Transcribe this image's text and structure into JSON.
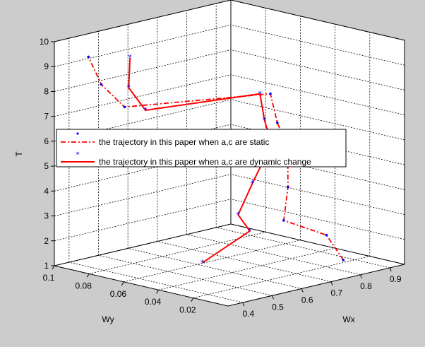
{
  "chart_data": {
    "type": "line",
    "title": "",
    "xlabel": "Wx",
    "ylabel": "Wy",
    "zlabel": "T",
    "xlim": [
      0.35,
      0.95
    ],
    "ylim": [
      0,
      0.1
    ],
    "zlim": [
      1,
      10
    ],
    "x_ticks": [
      "0.4",
      "0.5",
      "0.6",
      "0.7",
      "0.8",
      "0.9"
    ],
    "y_ticks": [
      "0.1",
      "0.08",
      "0.06",
      "0.04",
      "0.02"
    ],
    "z_ticks": [
      "1",
      "2",
      "3",
      "4",
      "5",
      "6",
      "7",
      "8",
      "9",
      "10"
    ],
    "grid": true,
    "legend_position": "center-left",
    "series": [
      {
        "name": "the trajectory in this paper when a,c are static",
        "color": "#ff0000",
        "marker_color": "#0000ff",
        "line_style": "dash-dot",
        "marker": "dot",
        "points": [
          {
            "x": 0.86,
            "y": 0.02,
            "t": 1.1
          },
          {
            "x": 0.85,
            "y": 0.028,
            "t": 2.0
          },
          {
            "x": 0.74,
            "y": 0.034,
            "t": 2.8
          },
          {
            "x": 0.79,
            "y": 0.04,
            "t": 3.9
          },
          {
            "x": 0.86,
            "y": 0.052,
            "t": 5.1
          },
          {
            "x": 0.86,
            "y": 0.058,
            "t": 6.0
          },
          {
            "x": 0.86,
            "y": 0.062,
            "t": 7.1
          },
          {
            "x": 0.5,
            "y": 0.085,
            "t": 7.2
          },
          {
            "x": 0.48,
            "y": 0.095,
            "t": 8.0
          },
          {
            "x": 0.46,
            "y": 0.099,
            "t": 9.1
          }
        ]
      },
      {
        "name": "the trajectory in this paper when a,c are dynamic change",
        "color": "#ff0000",
        "marker_color": "#0000ff",
        "line_style": "solid",
        "marker": "asterisk",
        "points": [
          {
            "x": 0.44,
            "y": 0.03,
            "t": 2.0
          },
          {
            "x": 0.66,
            "y": 0.04,
            "t": 2.5
          },
          {
            "x": 0.65,
            "y": 0.045,
            "t": 3.1
          },
          {
            "x": 0.74,
            "y": 0.052,
            "t": 4.0
          },
          {
            "x": 0.84,
            "y": 0.058,
            "t": 5.2
          },
          {
            "x": 0.84,
            "y": 0.062,
            "t": 6.1
          },
          {
            "x": 0.86,
            "y": 0.068,
            "t": 7.0
          },
          {
            "x": 0.53,
            "y": 0.078,
            "t": 7.1
          },
          {
            "x": 0.52,
            "y": 0.086,
            "t": 7.9
          },
          {
            "x": 0.56,
            "y": 0.092,
            "t": 8.9
          }
        ]
      }
    ]
  }
}
